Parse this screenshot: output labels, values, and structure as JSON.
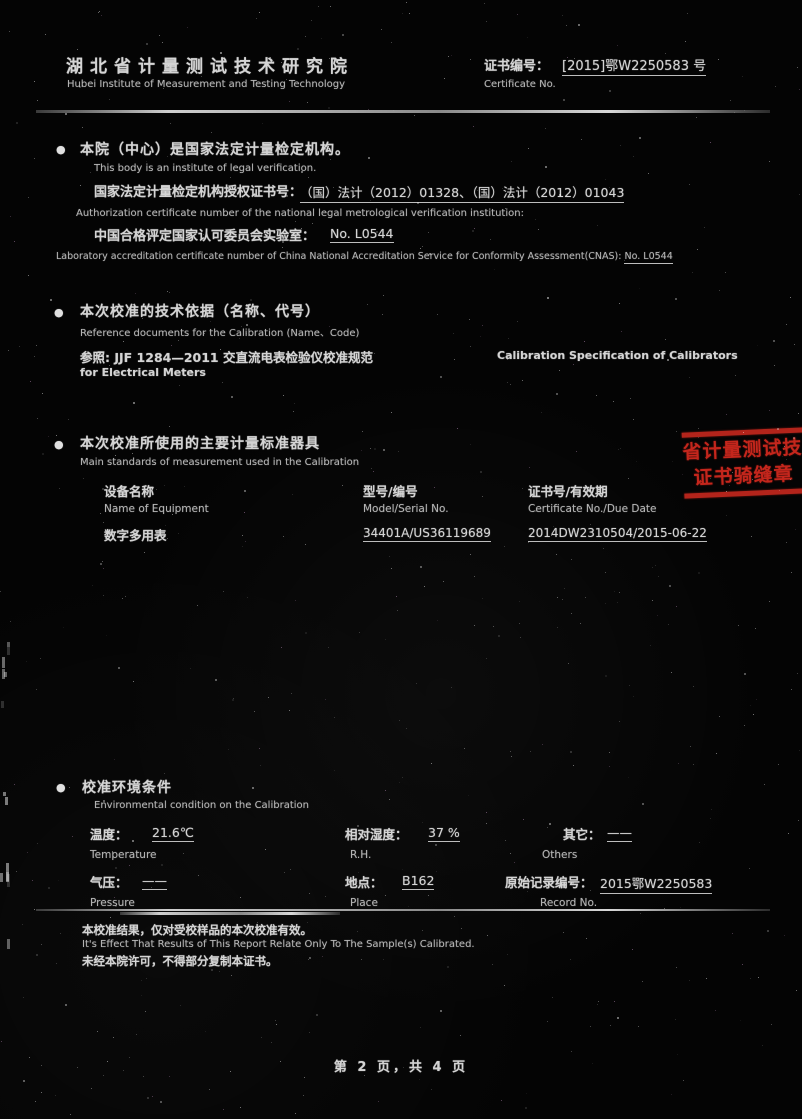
{
  "bullet": "●",
  "header": {
    "institute_cn": "湖北省计量测试技术研究院",
    "institute_en": "Hubei Institute of Measurement and Testing Technology",
    "cert_label_cn": "证书编号：",
    "cert_value": "[2015]鄂W2250583 号",
    "cert_label_en": "Certificate No."
  },
  "legal": {
    "title_cn": "本院（中心）是国家法定计量检定机构。",
    "title_en": "This body is an institute of legal verification.",
    "auth_label": "国家法定计量检定机构授权证书号：",
    "auth_value": "（国）法计（2012）01328、（国）法计（2012）01043",
    "auth_en": "Authorization certificate number of the national legal metrological verification institution:",
    "cnas_label": "中国合格评定国家认可委员会实验室：",
    "cnas_value": "No. L0544",
    "cnas_en_text": "Laboratory accreditation certificate number of China National Accreditation Service for Conformity Assessment(CNAS): ",
    "cnas_en_value": "No. L0544"
  },
  "reference": {
    "title_cn": "本次校准的技术依据（名称、代号）",
    "title_en": "Reference documents for the Calibration (Name、Code)",
    "doc_cn": "参照: JJF 1284—2011 交直流电表检验仪校准规范",
    "doc_en1": "Calibration Specification of Calibrators",
    "doc_en2": "for Electrical Meters"
  },
  "standards": {
    "title_cn": "本次校准所使用的主要计量标准器具",
    "title_en": "Main standards of measurement used in the Calibration",
    "col1_cn": "设备名称",
    "col1_en": "Name of Equipment",
    "col2_cn": "型号/编号",
    "col2_en": "Model/Serial No.",
    "col3_cn": "证书号/有效期",
    "col3_en": "Certificate No./Due Date",
    "row": {
      "name": "数字多用表",
      "model": "34401A/US36119689",
      "cert": "2014DW2310504/2015-06-22"
    }
  },
  "stamp": {
    "line1": "省计量测试技术",
    "line2": "证书骑缝章",
    "color": "#c4261c"
  },
  "environment": {
    "title_cn": "校准环境条件",
    "title_en": "Environmental condition on the Calibration",
    "temp_label_cn": "温度：",
    "temp_value": "21.6℃",
    "temp_label_en": "Temperature",
    "rh_label_cn": "相对湿度：",
    "rh_value": "37 %",
    "rh_label_en": "R.H.",
    "others_label_cn": "其它：",
    "others_value": "——",
    "others_label_en": "Others",
    "pressure_label_cn": "气压：",
    "pressure_value": "——",
    "pressure_label_en": "Pressure",
    "place_label_cn": "地点：",
    "place_value": "B162",
    "place_label_en": "Place",
    "record_label_cn": "原始记录编号：",
    "record_value": "2015鄂W2250583",
    "record_label_en": "Record No."
  },
  "notes": {
    "line1_cn": "本校准结果，仅对受校样品的本次校准有效。",
    "line1_en": "It's Effect That Results of This Report Relate Only To The Sample(s) Calibrated.",
    "line2_cn": "未经本院许可，不得部分复制本证书。"
  },
  "footer": {
    "page_info": "第 2 页，共 4 页"
  }
}
